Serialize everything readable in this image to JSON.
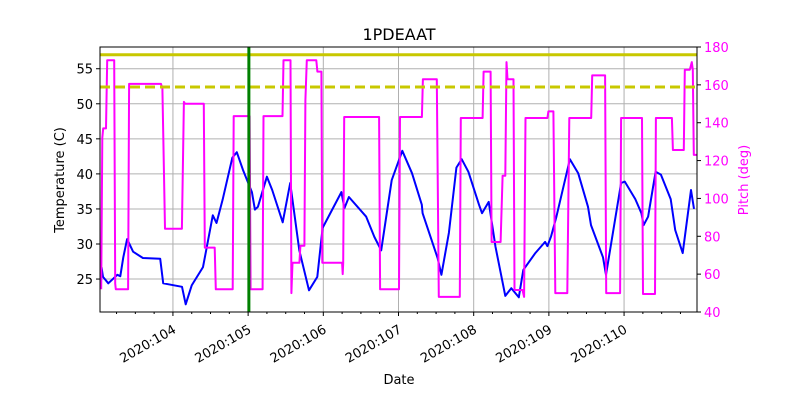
{
  "chart_data": {
    "type": "line",
    "title": "1PDEAAT",
    "xlabel": "Date",
    "ylabel": "Temperature (C)",
    "y2label": "Pitch (deg)",
    "xlim": [
      103.03,
      110.97
    ],
    "ylim": [
      20.3,
      58.1
    ],
    "y2lim": [
      40,
      180
    ],
    "grid": true,
    "x_ticks": [
      104,
      105,
      106,
      107,
      108,
      109,
      110
    ],
    "x_tick_labels": [
      "2020:104",
      "2020:105",
      "2020:106",
      "2020:107",
      "2020:108",
      "2020:109",
      "2020:110"
    ],
    "y_ticks": [
      25,
      30,
      35,
      40,
      45,
      50,
      55
    ],
    "y2_ticks": [
      40,
      60,
      80,
      100,
      120,
      140,
      160,
      180
    ],
    "colors": {
      "temperature": "#0000ff",
      "pitch": "#ff00ff",
      "limit": "#c8c800",
      "marker": "#008000"
    },
    "hlines": [
      {
        "y": 57.0,
        "style": "solid",
        "color": "#c8c800"
      },
      {
        "y": 52.4,
        "style": "dashed",
        "color": "#c8c800"
      }
    ],
    "vlines": [
      {
        "x": 105.01,
        "color": "#008000"
      }
    ],
    "series": [
      {
        "axis": "left",
        "color": "#0000ff",
        "points": [
          [
            103.05,
            26.7
          ],
          [
            103.07,
            25.3
          ],
          [
            103.14,
            24.4
          ],
          [
            103.26,
            25.6
          ],
          [
            103.3,
            25.4
          ],
          [
            103.34,
            28.1
          ],
          [
            103.39,
            30.7
          ],
          [
            103.47,
            28.9
          ],
          [
            103.6,
            28.0
          ],
          [
            103.83,
            27.9
          ],
          [
            103.87,
            24.4
          ],
          [
            104.12,
            23.9
          ],
          [
            104.17,
            21.4
          ],
          [
            104.25,
            24.1
          ],
          [
            104.4,
            26.7
          ],
          [
            104.53,
            34.1
          ],
          [
            104.58,
            33.0
          ],
          [
            104.66,
            36.3
          ],
          [
            104.79,
            42.3
          ],
          [
            104.85,
            43.1
          ],
          [
            104.93,
            40.6
          ],
          [
            105.05,
            37.4
          ],
          [
            105.09,
            34.9
          ],
          [
            105.13,
            35.3
          ],
          [
            105.25,
            39.6
          ],
          [
            105.32,
            37.7
          ],
          [
            105.46,
            33.1
          ],
          [
            105.56,
            38.7
          ],
          [
            105.68,
            29.1
          ],
          [
            105.81,
            23.4
          ],
          [
            105.92,
            25.3
          ],
          [
            105.99,
            32.3
          ],
          [
            106.24,
            37.4
          ],
          [
            106.28,
            35.1
          ],
          [
            106.34,
            36.7
          ],
          [
            106.57,
            33.9
          ],
          [
            106.68,
            31.0
          ],
          [
            106.77,
            29.1
          ],
          [
            106.91,
            39.1
          ],
          [
            107.05,
            43.3
          ],
          [
            107.18,
            40.1
          ],
          [
            107.31,
            35.6
          ],
          [
            107.32,
            34.4
          ],
          [
            107.52,
            28.0
          ],
          [
            107.57,
            25.6
          ],
          [
            107.67,
            31.6
          ],
          [
            107.77,
            40.9
          ],
          [
            107.84,
            42.1
          ],
          [
            107.93,
            40.3
          ],
          [
            108.07,
            35.6
          ],
          [
            108.11,
            34.4
          ],
          [
            108.2,
            36.0
          ],
          [
            108.29,
            29.6
          ],
          [
            108.42,
            22.6
          ],
          [
            108.5,
            23.7
          ],
          [
            108.6,
            22.4
          ],
          [
            108.66,
            26.3
          ],
          [
            108.82,
            28.7
          ],
          [
            108.95,
            30.3
          ],
          [
            108.98,
            29.7
          ],
          [
            109.03,
            31.1
          ],
          [
            109.1,
            33.9
          ],
          [
            109.28,
            42.1
          ],
          [
            109.39,
            40.1
          ],
          [
            109.52,
            35.3
          ],
          [
            109.56,
            32.7
          ],
          [
            109.72,
            28.1
          ],
          [
            109.76,
            25.6
          ],
          [
            109.96,
            38.7
          ],
          [
            110.01,
            38.9
          ],
          [
            110.15,
            36.4
          ],
          [
            110.23,
            34.4
          ],
          [
            110.26,
            32.7
          ],
          [
            110.32,
            33.9
          ],
          [
            110.42,
            40.3
          ],
          [
            110.49,
            39.9
          ],
          [
            110.62,
            36.4
          ],
          [
            110.68,
            32.0
          ],
          [
            110.78,
            28.7
          ],
          [
            110.89,
            37.7
          ],
          [
            110.93,
            35.0
          ]
        ]
      },
      {
        "axis": "right",
        "color": "#ff00ff",
        "points": [
          [
            103.046,
            52
          ],
          [
            103.06,
            132
          ],
          [
            103.073,
            137
          ],
          [
            103.11,
            137
          ],
          [
            103.126,
            173
          ],
          [
            103.219,
            173
          ],
          [
            103.232,
            55
          ],
          [
            103.24,
            52
          ],
          [
            103.404,
            52
          ],
          [
            103.417,
            160.5
          ],
          [
            103.841,
            160.5
          ],
          [
            103.86,
            158
          ],
          [
            103.894,
            84
          ],
          [
            104.119,
            84
          ],
          [
            104.146,
            151
          ],
          [
            104.16,
            150
          ],
          [
            104.411,
            150
          ],
          [
            104.424,
            74
          ],
          [
            104.556,
            74
          ],
          [
            104.57,
            52
          ],
          [
            104.795,
            52
          ],
          [
            104.808,
            143.5
          ],
          [
            105.02,
            143.5
          ],
          [
            105.033,
            52
          ],
          [
            105.192,
            52
          ],
          [
            105.205,
            143.5
          ],
          [
            105.457,
            143.5
          ],
          [
            105.47,
            173
          ],
          [
            105.563,
            173
          ],
          [
            105.576,
            50
          ],
          [
            105.59,
            66
          ],
          [
            105.682,
            66
          ],
          [
            105.695,
            75
          ],
          [
            105.748,
            75
          ],
          [
            105.762,
            152
          ],
          [
            105.78,
            173
          ],
          [
            105.907,
            173
          ],
          [
            105.921,
            167
          ],
          [
            105.974,
            167
          ],
          [
            105.987,
            66
          ],
          [
            106.25,
            66
          ],
          [
            106.258,
            60
          ],
          [
            106.265,
            66
          ],
          [
            106.278,
            143
          ],
          [
            106.742,
            143
          ],
          [
            106.755,
            52
          ],
          [
            107.007,
            52
          ],
          [
            107.02,
            143
          ],
          [
            107.311,
            143
          ],
          [
            107.325,
            163
          ],
          [
            107.51,
            163
          ],
          [
            107.536,
            48
          ],
          [
            107.815,
            48
          ],
          [
            107.828,
            142.5
          ],
          [
            108.119,
            142.5
          ],
          [
            108.132,
            167
          ],
          [
            108.225,
            167
          ],
          [
            108.238,
            77
          ],
          [
            108.358,
            77
          ],
          [
            108.384,
            112
          ],
          [
            108.42,
            112
          ],
          [
            108.437,
            172
          ],
          [
            108.45,
            163
          ],
          [
            108.53,
            163
          ],
          [
            108.543,
            51.6
          ],
          [
            108.649,
            51.6
          ],
          [
            108.67,
            48
          ],
          [
            108.689,
            142.5
          ],
          [
            108.98,
            142.5
          ],
          [
            108.993,
            146
          ],
          [
            109.06,
            146
          ],
          [
            109.086,
            50
          ],
          [
            109.245,
            50
          ],
          [
            109.272,
            142.5
          ],
          [
            109.563,
            142.5
          ],
          [
            109.576,
            165
          ],
          [
            109.748,
            165
          ],
          [
            109.762,
            50
          ],
          [
            109.947,
            50
          ],
          [
            109.96,
            142.5
          ],
          [
            110.238,
            142.5
          ],
          [
            110.252,
            49.5
          ],
          [
            110.411,
            49.5
          ],
          [
            110.424,
            142.5
          ],
          [
            110.636,
            142.5
          ],
          [
            110.649,
            125.6
          ],
          [
            110.795,
            125.6
          ],
          [
            110.808,
            168
          ],
          [
            110.874,
            168
          ],
          [
            110.901,
            172
          ],
          [
            110.914,
            168
          ],
          [
            110.927,
            123
          ],
          [
            110.967,
            123
          ]
        ]
      }
    ]
  }
}
